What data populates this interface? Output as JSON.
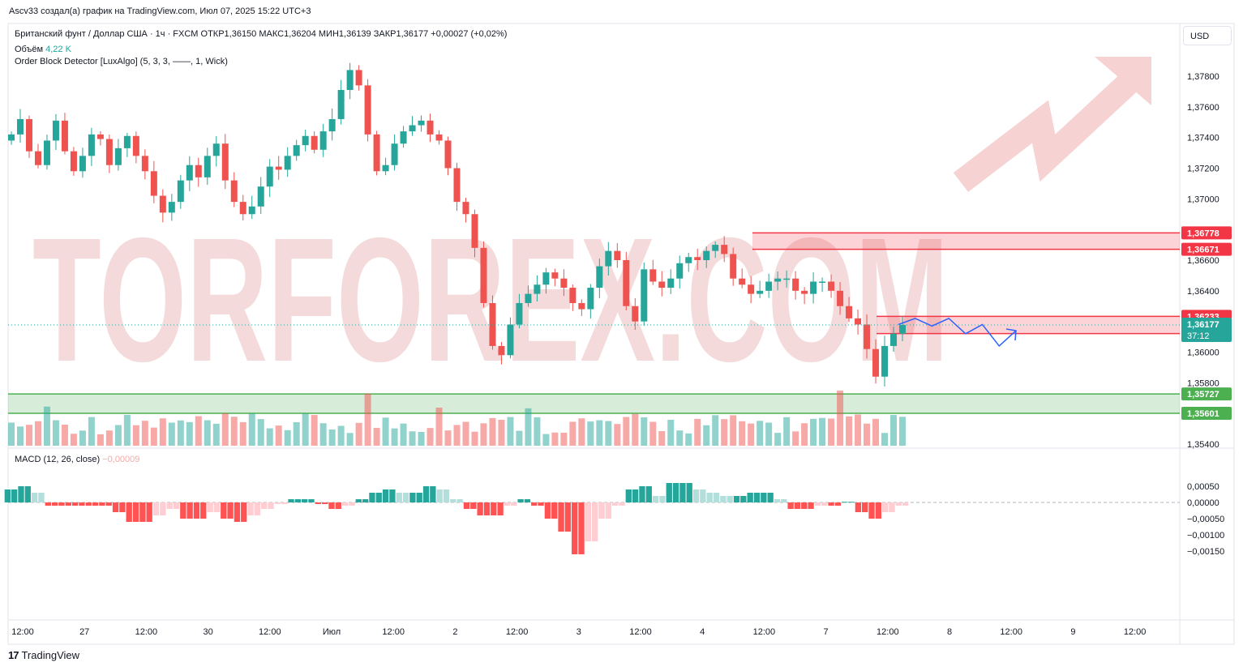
{
  "header": {
    "attribution": "Ascv33 создал(а) график на TradingView.com, Июл 07, 2025 15:22 UTC+3",
    "symbol_line": "Британский фунт / Доллар США · 1ч · FXCM  ОТКР1,36150  МАКС1,36204  МИН1,36139  ЗАКР1,36177  +0,00027 (+0,02%)",
    "volume_label": "Объём",
    "volume_value": "4,22 K",
    "indicator_line": "Order Block Detector [LuxAlgo] (5, 3, 3, ——, 1, Wick)",
    "currency_button": "USD"
  },
  "macd_legend": {
    "label": "MACD (12, 26, close)",
    "value": "−0,00009"
  },
  "watermark": "TORFOREX.COM",
  "footer": {
    "brand": "TradingView",
    "logo": "17"
  },
  "colors": {
    "up": "#26a69a",
    "down": "#ef5350",
    "zone_red": "#f23645",
    "zone_green": "#4caf50",
    "forecast": "#2962ff"
  },
  "chart_data": [
    {
      "type": "candlestick",
      "title": "Британский фунт / Доллар США · 1ч · FXCM",
      "ylim": [
        1.354,
        1.38
      ],
      "y_ticks": [
        "1,37800",
        "1,37600",
        "1,37400",
        "1,37200",
        "1,37000",
        "1,36800",
        "1,36600",
        "1,36400",
        "1,36200",
        "1,36000",
        "1,35800",
        "1,35600",
        "1,35400"
      ],
      "x_ticks": [
        "12:00",
        "27",
        "12:00",
        "30",
        "12:00",
        "Июл",
        "12:00",
        "2",
        "12:00",
        "3",
        "12:00",
        "4",
        "12:00",
        "7",
        "12:00",
        "8",
        "12:00",
        "9",
        "12:00"
      ],
      "ohlc_summary": {
        "open": 1.3615,
        "high": 1.36204,
        "low": 1.36139,
        "close": 1.36177,
        "change": 0.00027
      },
      "close_path": [
        1.3742,
        1.3752,
        1.3731,
        1.3722,
        1.3738,
        1.3751,
        1.3731,
        1.3718,
        1.3728,
        1.3742,
        1.3739,
        1.3722,
        1.3733,
        1.3741,
        1.3728,
        1.3718,
        1.3702,
        1.3691,
        1.3698,
        1.3712,
        1.3722,
        1.3714,
        1.3728,
        1.3736,
        1.3712,
        1.3698,
        1.369,
        1.3695,
        1.3708,
        1.3721,
        1.3719,
        1.3728,
        1.3735,
        1.3741,
        1.3732,
        1.3744,
        1.3752,
        1.3771,
        1.3784,
        1.3774,
        1.3742,
        1.3718,
        1.3722,
        1.3736,
        1.3744,
        1.3748,
        1.3751,
        1.3742,
        1.3738,
        1.372,
        1.3698,
        1.369,
        1.3668,
        1.3632,
        1.3604,
        1.3598,
        1.3618,
        1.3632,
        1.3638,
        1.3644,
        1.3652,
        1.3648,
        1.3642,
        1.3632,
        1.3628,
        1.3642,
        1.3656,
        1.3666,
        1.366,
        1.363,
        1.362,
        1.3654,
        1.3646,
        1.3642,
        1.3648,
        1.3658,
        1.3662,
        1.366,
        1.3666,
        1.367,
        1.3664,
        1.3648,
        1.3644,
        1.3638,
        1.364,
        1.3646,
        1.3648,
        1.3648,
        1.364,
        1.3638,
        1.3646,
        1.3646,
        1.364,
        1.363,
        1.3622,
        1.3618,
        1.3602,
        1.3584,
        1.3604,
        1.3612,
        1.36177
      ],
      "current_price_label": "1,36177",
      "countdown": "37:12",
      "price_labels": [
        {
          "value": 1.36778,
          "text": "1,36778",
          "color": "#f23645"
        },
        {
          "value": 1.36671,
          "text": "1,36671",
          "color": "#f23645"
        },
        {
          "value": 1.36233,
          "text": "1,36233",
          "color": "#f23645"
        },
        {
          "value": 1.36121,
          "text": "1,36121",
          "color": "#f23645"
        },
        {
          "value": 1.35727,
          "text": "1,35727",
          "color": "#4caf50"
        },
        {
          "value": 1.35601,
          "text": "1,35601",
          "color": "#4caf50"
        }
      ],
      "zones": [
        {
          "kind": "bearish order block",
          "top": 1.36778,
          "bottom": 1.36671
        },
        {
          "kind": "bearish order block",
          "top": 1.36233,
          "bottom": 1.36121
        },
        {
          "kind": "bullish order block",
          "top": 1.35727,
          "bottom": 1.35601
        }
      ],
      "forecast_path": [
        1.3618,
        1.3622,
        1.3617,
        1.3622,
        1.3612,
        1.3618,
        1.3604,
        1.3614
      ]
    },
    {
      "type": "bar",
      "title": "MACD (12, 26, close)",
      "ylim": [
        -0.0017,
        0.0007
      ],
      "y_ticks": [
        "0,00050",
        "0,00000",
        "−0,00050",
        "−0,00100",
        "−0,00150"
      ],
      "values": [
        0.0004,
        0.0005,
        0.0003,
        -0.0001,
        -0.0001,
        -0.0001,
        -0.0001,
        -0.0001,
        -0.0003,
        -0.0006,
        -0.0006,
        -0.0004,
        -0.0002,
        -0.0005,
        -0.0005,
        -0.0003,
        -0.0005,
        -0.0006,
        -0.0004,
        -0.0002,
        -5e-05,
        0.0001,
        0.0001,
        -5e-05,
        -0.0002,
        -0.0001,
        0.0001,
        0.0003,
        0.0004,
        0.0003,
        0.0003,
        0.0005,
        0.0004,
        0.0001,
        -0.0002,
        -0.0004,
        -0.0004,
        -0.0001,
        0.0001,
        -0.0001,
        -0.0005,
        -0.0009,
        -0.0016,
        -0.0012,
        -0.0005,
        -0.0001,
        0.0004,
        0.0005,
        0.0002,
        0.0006,
        0.0006,
        0.0004,
        0.0003,
        0.0002,
        0.0002,
        0.0003,
        0.0003,
        0.0001,
        -0.0002,
        -0.0002,
        -0.0001,
        -0.0001,
        2e-05,
        -0.0003,
        -0.0005,
        -0.0003,
        -0.0001
      ]
    }
  ]
}
